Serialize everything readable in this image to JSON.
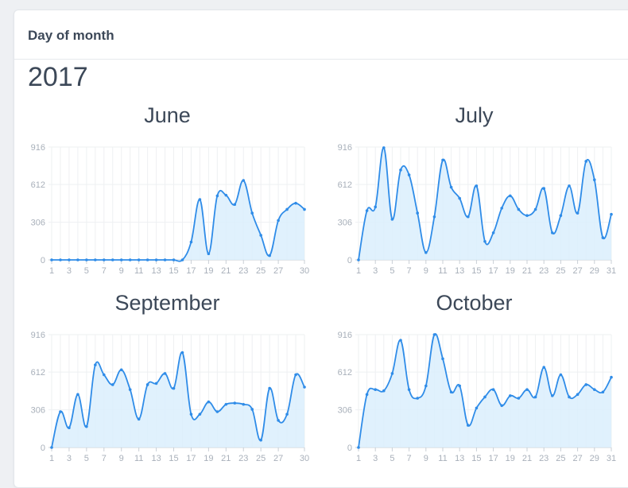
{
  "panel": {
    "title": "Day of month"
  },
  "year": "2017",
  "colors": {
    "line": "#2f8ce8",
    "fill": "#dbeefd",
    "grid": "#eef0f2",
    "axis": "#c9cfd6"
  },
  "chart_data": [
    {
      "type": "area",
      "title": "June",
      "x": [
        1,
        2,
        3,
        4,
        5,
        6,
        7,
        8,
        9,
        10,
        11,
        12,
        13,
        14,
        15,
        16,
        17,
        18,
        19,
        20,
        21,
        22,
        23,
        24,
        25,
        26,
        27,
        28,
        29,
        30
      ],
      "values": [
        0,
        0,
        0,
        0,
        0,
        0,
        0,
        0,
        0,
        0,
        0,
        0,
        0,
        0,
        0,
        0,
        145,
        490,
        50,
        520,
        525,
        450,
        645,
        380,
        200,
        35,
        320,
        410,
        460,
        410
      ],
      "x_ticks": [
        1,
        3,
        5,
        7,
        9,
        11,
        13,
        15,
        17,
        19,
        21,
        23,
        25,
        27,
        30
      ],
      "y_ticks": [
        0,
        306,
        612,
        916
      ],
      "ylim": [
        0,
        916
      ],
      "xlabel": "",
      "ylabel": ""
    },
    {
      "type": "area",
      "title": "July",
      "x": [
        1,
        2,
        3,
        4,
        5,
        6,
        7,
        8,
        9,
        10,
        11,
        12,
        13,
        14,
        15,
        16,
        17,
        18,
        19,
        20,
        21,
        22,
        23,
        24,
        25,
        26,
        27,
        28,
        29,
        30,
        31
      ],
      "values": [
        0,
        400,
        430,
        910,
        330,
        730,
        690,
        380,
        60,
        350,
        810,
        590,
        500,
        350,
        600,
        150,
        220,
        420,
        520,
        410,
        360,
        410,
        580,
        220,
        360,
        600,
        380,
        800,
        650,
        180,
        370
      ],
      "x_ticks": [
        1,
        3,
        5,
        7,
        9,
        11,
        13,
        15,
        17,
        19,
        21,
        23,
        25,
        27,
        29,
        31
      ],
      "y_ticks": [
        0,
        306,
        612,
        916
      ],
      "ylim": [
        0,
        916
      ],
      "xlabel": "",
      "ylabel": ""
    },
    {
      "type": "area",
      "title": "September",
      "x": [
        1,
        2,
        3,
        4,
        5,
        6,
        7,
        8,
        9,
        10,
        11,
        12,
        13,
        14,
        15,
        16,
        17,
        18,
        19,
        20,
        21,
        22,
        23,
        24,
        25,
        26,
        27,
        28,
        29,
        30
      ],
      "values": [
        0,
        290,
        160,
        430,
        170,
        670,
        590,
        510,
        630,
        470,
        230,
        510,
        520,
        600,
        480,
        770,
        270,
        270,
        370,
        290,
        350,
        360,
        350,
        310,
        60,
        480,
        220,
        270,
        590,
        490
      ],
      "x_ticks": [
        1,
        3,
        5,
        7,
        9,
        11,
        13,
        15,
        17,
        19,
        21,
        23,
        25,
        27,
        30
      ],
      "y_ticks": [
        0,
        306,
        612,
        916
      ],
      "ylim": [
        0,
        916
      ],
      "xlabel": "",
      "ylabel": ""
    },
    {
      "type": "area",
      "title": "October",
      "x": [
        1,
        2,
        3,
        4,
        5,
        6,
        7,
        8,
        9,
        10,
        11,
        12,
        13,
        14,
        15,
        16,
        17,
        18,
        19,
        20,
        21,
        22,
        23,
        24,
        25,
        26,
        27,
        28,
        29,
        30,
        31
      ],
      "values": [
        0,
        430,
        470,
        460,
        600,
        870,
        470,
        400,
        500,
        916,
        720,
        450,
        500,
        180,
        320,
        410,
        470,
        340,
        420,
        400,
        470,
        410,
        650,
        420,
        590,
        410,
        430,
        510,
        470,
        450,
        570
      ],
      "x_ticks": [
        1,
        3,
        5,
        7,
        9,
        11,
        13,
        15,
        17,
        19,
        21,
        23,
        25,
        27,
        29,
        31
      ],
      "y_ticks": [
        0,
        306,
        612,
        916
      ],
      "ylim": [
        0,
        916
      ],
      "xlabel": "",
      "ylabel": ""
    }
  ]
}
